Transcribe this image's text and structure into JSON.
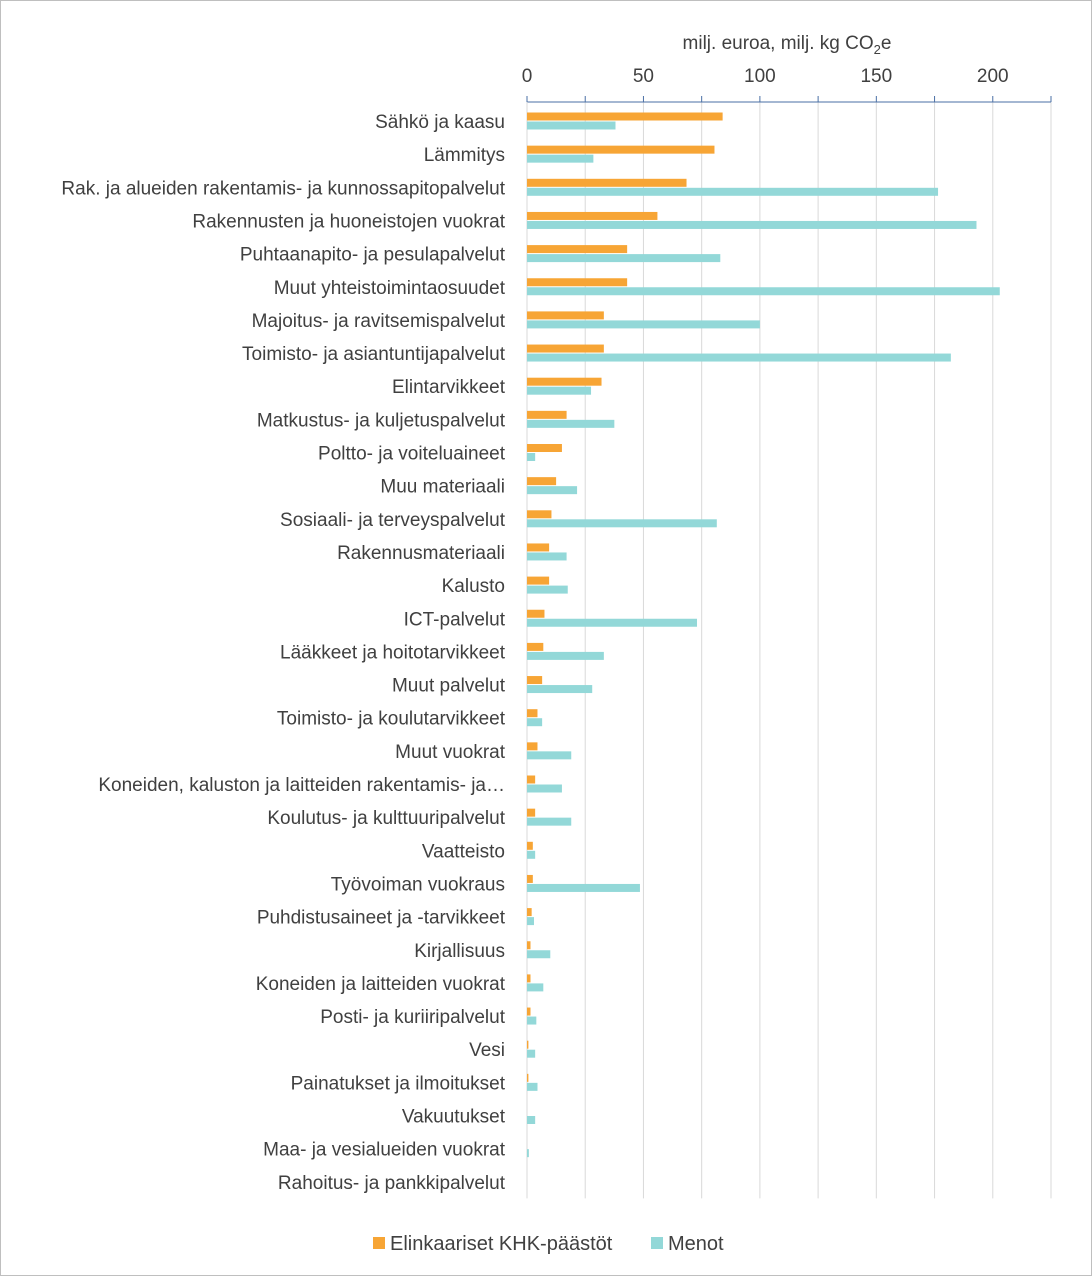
{
  "chart_data": {
    "type": "bar",
    "orientation": "horizontal",
    "xlabel": "milj. euroa, milj. kg CO₂e",
    "xlabel_parts": {
      "main": "milj. euroa, milj. kg CO",
      "sub": "2",
      "tail": "e"
    },
    "x_axis_position": "top",
    "xlim": [
      0,
      225
    ],
    "xticks": [
      0,
      50,
      100,
      150,
      200
    ],
    "xtick_labels": [
      "0",
      "50",
      "100",
      "150",
      "200"
    ],
    "grid": true,
    "legend_position": "bottom",
    "categories": [
      "Sähkö ja kaasu",
      "Lämmitys",
      "Rak. ja alueiden rakentamis- ja kunnossapitopalvelut",
      "Rakennusten ja huoneistojen vuokrat",
      "Puhtaanapito- ja pesulapalvelut",
      "Muut yhteistoimintaosuudet",
      "Majoitus- ja ravitsemispalvelut",
      "Toimisto- ja asiantuntijapalvelut",
      "Elintarvikkeet",
      "Matkustus- ja kuljetuspalvelut",
      "Poltto- ja voiteluaineet",
      "Muu materiaali",
      "Sosiaali- ja terveyspalvelut",
      "Rakennusmateriaali",
      "Kalusto",
      "ICT-palvelut",
      "Lääkkeet ja hoitotarvikkeet",
      "Muut palvelut",
      "Toimisto- ja koulutarvikkeet",
      "Muut vuokrat",
      "Koneiden, kaluston ja laitteiden rakentamis- ja…",
      "Koulutus- ja kulttuuripalvelut",
      "Vaatteisto",
      "Työvoiman vuokraus",
      "Puhdistusaineet ja -tarvikkeet",
      "Kirjallisuus",
      "Koneiden ja laitteiden vuokrat",
      "Posti- ja kuriiripalvelut",
      "Vesi",
      "Painatukset ja ilmoitukset",
      "Vakuutukset",
      "Maa- ja vesialueiden vuokrat",
      "Rahoitus- ja pankkipalvelut"
    ],
    "series": [
      {
        "name": "Elinkaariset KHK-päästöt",
        "color": "#F7A535",
        "values": [
          84,
          80.5,
          68.5,
          56,
          43,
          43,
          33,
          33,
          32,
          17,
          15,
          12.5,
          10.5,
          9.5,
          9.5,
          7.5,
          7,
          6.5,
          4.5,
          4.5,
          3.5,
          3.5,
          2.5,
          2.5,
          2,
          1.5,
          1.5,
          1.5,
          0.6,
          0.6,
          0,
          0,
          0
        ]
      },
      {
        "name": "Menot",
        "color": "#93D8D8",
        "values": [
          38,
          28.5,
          176.5,
          193,
          83,
          203,
          100,
          182,
          27.5,
          37.5,
          3.5,
          21.5,
          81.5,
          17,
          17.5,
          73,
          33,
          28,
          6.5,
          19,
          15,
          19,
          3.5,
          48.5,
          3,
          10,
          7,
          4,
          3.5,
          4.5,
          3.5,
          0.8,
          0
        ]
      }
    ]
  }
}
